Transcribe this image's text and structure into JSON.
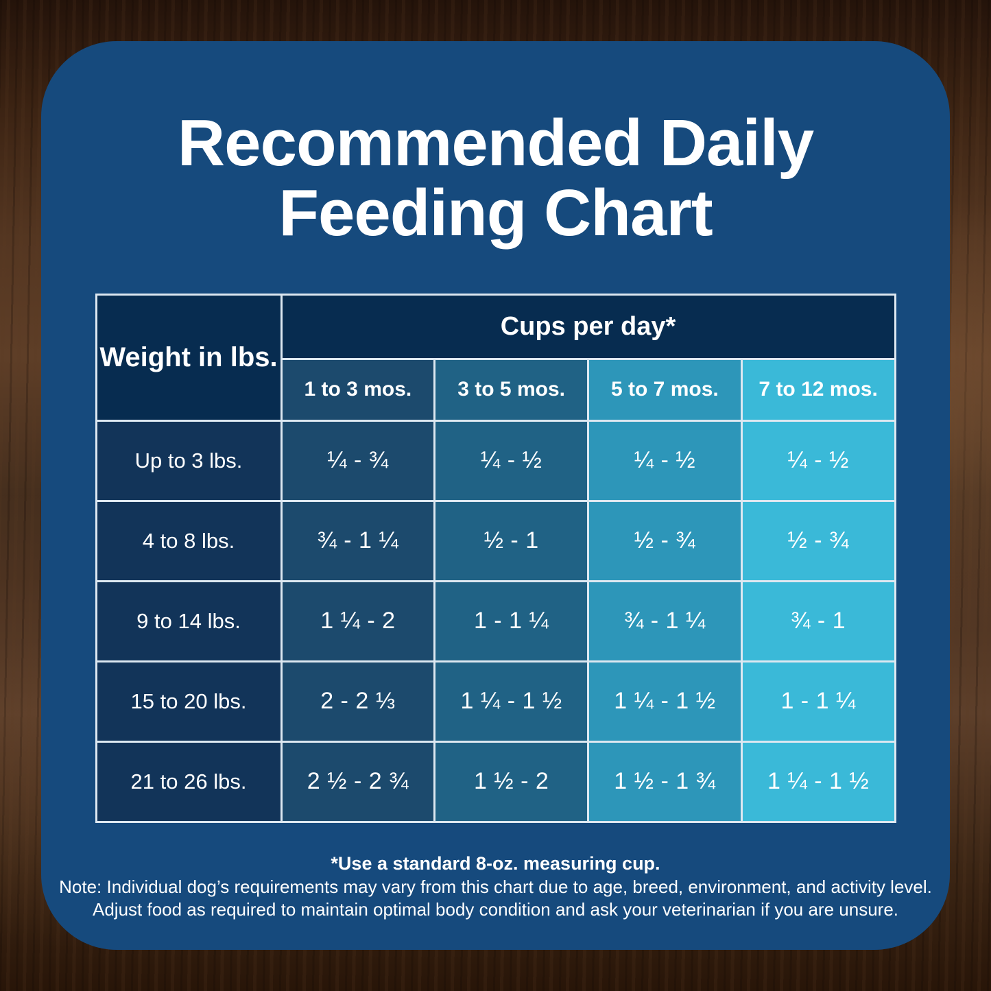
{
  "title": "Recommended Daily Feeding Chart",
  "chart_data": {
    "type": "table",
    "title": "Recommended Daily Feeding Chart",
    "group_header": "Cups per day*",
    "corner_header": "Weight in lbs.",
    "age_columns": [
      "1 to 3 mos.",
      "3 to 5 mos.",
      "5 to 7 mos.",
      "7 to 12 mos."
    ],
    "rows": [
      {
        "weight": "Up to 3 lbs.",
        "values": [
          "¼ - ¾",
          "¼ - ½",
          "¼ - ½",
          "¼ - ½"
        ]
      },
      {
        "weight": "4 to 8 lbs.",
        "values": [
          "¾ - 1 ¼",
          "½ - 1",
          "½ - ¾",
          "½ - ¾"
        ]
      },
      {
        "weight": "9 to 14 lbs.",
        "values": [
          "1 ¼ - 2",
          "1 - 1 ¼",
          "¾ - 1 ¼",
          "¾ - 1"
        ]
      },
      {
        "weight": "15 to 20 lbs.",
        "values": [
          "2 - 2 ⅓",
          "1 ¼ - 1 ½",
          "1 ¼ - 1 ½",
          "1 - 1 ¼"
        ]
      },
      {
        "weight": "21 to 26 lbs.",
        "values": [
          "2 ½ - 2 ¾",
          "1 ½ - 2",
          "1 ½ - 1 ¾",
          "1 ¼ - 1 ½"
        ]
      }
    ]
  },
  "footnotes": {
    "measuring_cup": "*Use a standard 8-oz. measuring cup.",
    "note_line1": "Note: Individual dog’s requirements may vary from this chart due to age, breed, environment, and activity level.",
    "note_line2": "Adjust food as required to maintain optimal body condition and ask your veterinarian if you are unsure."
  },
  "colors": {
    "panel": "#164a7d",
    "header_cell": "#072c50",
    "weight_cell": "#123459",
    "age_col_1": "#1c4a6d",
    "age_col_2": "#206285",
    "age_col_3": "#2d96b9",
    "age_col_4": "#3ab9d8",
    "cell_border": "#dde8f1",
    "text": "#ffffff"
  }
}
